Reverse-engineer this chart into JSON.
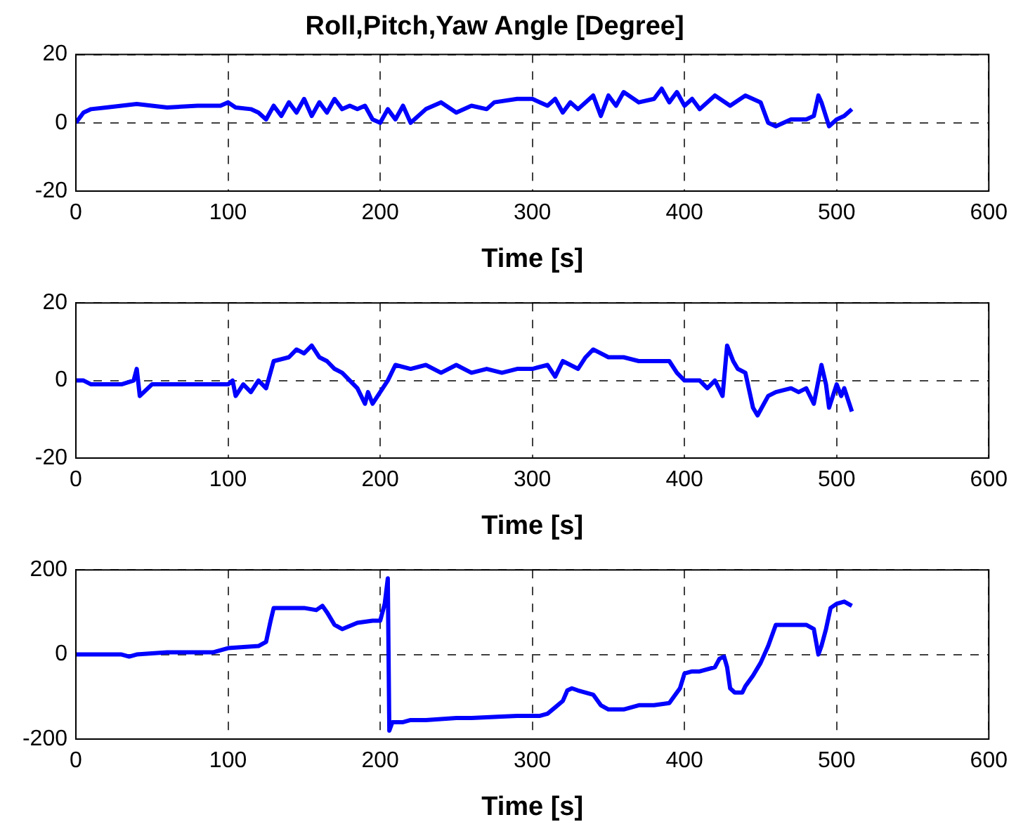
{
  "chart_data": [
    {
      "type": "line",
      "title": "Roll,Pitch,Yaw Angle [Degree]",
      "xlabel": "Time [s]",
      "xlim": [
        0,
        600
      ],
      "xticks": [
        0,
        100,
        200,
        300,
        400,
        500,
        600
      ],
      "ylim": [
        -20,
        20
      ],
      "yticks": [
        -20,
        0,
        20
      ],
      "grid": true,
      "marker": "none",
      "line_style": "solid",
      "series": [
        {
          "color": "#0000ff",
          "x": [
            0,
            5,
            10,
            20,
            30,
            40,
            50,
            60,
            80,
            95,
            100,
            105,
            115,
            120,
            125,
            130,
            135,
            140,
            145,
            150,
            155,
            160,
            165,
            170,
            175,
            180,
            185,
            190,
            195,
            200,
            205,
            210,
            215,
            220,
            230,
            240,
            250,
            260,
            270,
            275,
            290,
            300,
            305,
            310,
            315,
            320,
            325,
            330,
            340,
            345,
            350,
            355,
            360,
            370,
            380,
            385,
            390,
            395,
            400,
            405,
            410,
            420,
            430,
            440,
            450,
            455,
            460,
            470,
            480,
            485,
            488,
            490,
            495,
            500,
            505,
            510
          ],
          "values": [
            0,
            3,
            4,
            4.5,
            5,
            5.5,
            5,
            4.5,
            5,
            5,
            6,
            4.5,
            4,
            3,
            1,
            5,
            2,
            6,
            3,
            7,
            2,
            6,
            3,
            7,
            4,
            5,
            4,
            5,
            1,
            0,
            4,
            1,
            5,
            0,
            4,
            6,
            3,
            5,
            4,
            6,
            7,
            7,
            6,
            5,
            7,
            3,
            6,
            4,
            8,
            2,
            8,
            5,
            9,
            6,
            7,
            10,
            6,
            9,
            5,
            7,
            4,
            8,
            5,
            8,
            6,
            0,
            -1,
            1,
            1,
            2,
            8,
            6,
            -1,
            1,
            2,
            4
          ]
        }
      ]
    },
    {
      "type": "line",
      "xlabel": "Time [s]",
      "xlim": [
        0,
        600
      ],
      "xticks": [
        0,
        100,
        200,
        300,
        400,
        500,
        600
      ],
      "ylim": [
        -20,
        20
      ],
      "yticks": [
        -20,
        0,
        20
      ],
      "grid": true,
      "marker": "none",
      "line_style": "solid",
      "series": [
        {
          "color": "#0000ff",
          "x": [
            0,
            5,
            10,
            20,
            30,
            38,
            40,
            42,
            50,
            60,
            70,
            80,
            90,
            100,
            103,
            105,
            110,
            115,
            120,
            125,
            130,
            140,
            145,
            150,
            155,
            160,
            165,
            170,
            175,
            180,
            185,
            190,
            192,
            195,
            200,
            205,
            210,
            220,
            230,
            240,
            250,
            260,
            270,
            280,
            290,
            300,
            310,
            315,
            320,
            330,
            335,
            340,
            350,
            360,
            370,
            380,
            390,
            395,
            400,
            410,
            415,
            420,
            425,
            428,
            432,
            435,
            440,
            445,
            448,
            455,
            460,
            470,
            475,
            480,
            485,
            490,
            493,
            495,
            500,
            503,
            505,
            510
          ],
          "values": [
            0,
            0,
            -1,
            -1,
            -1,
            0,
            3,
            -4,
            -1,
            -1,
            -1,
            -1,
            -1,
            -1,
            0,
            -4,
            -1,
            -3,
            0,
            -2,
            5,
            6,
            8,
            7,
            9,
            6,
            5,
            3,
            2,
            0,
            -2,
            -6,
            -3,
            -6,
            -3,
            0,
            4,
            3,
            4,
            2,
            4,
            2,
            3,
            2,
            3,
            3,
            4,
            1,
            5,
            3,
            6,
            8,
            6,
            6,
            5,
            5,
            5,
            2,
            0,
            0,
            -2,
            0,
            -4,
            9,
            5,
            3,
            2,
            -7,
            -9,
            -4,
            -3,
            -2,
            -3,
            -2,
            -6,
            4,
            -1,
            -7,
            -1,
            -4,
            -2,
            -8
          ]
        }
      ]
    },
    {
      "type": "line",
      "xlabel": "Time [s]",
      "xlim": [
        0,
        600
      ],
      "xticks": [
        0,
        100,
        200,
        300,
        400,
        500,
        600
      ],
      "ylim": [
        -200,
        200
      ],
      "yticks": [
        -200,
        0,
        200
      ],
      "grid": true,
      "marker": "none",
      "line_style": "solid",
      "series": [
        {
          "color": "#0000ff",
          "x": [
            0,
            20,
            30,
            35,
            40,
            60,
            90,
            100,
            120,
            125,
            128,
            130,
            140,
            150,
            158,
            162,
            165,
            170,
            175,
            185,
            195,
            200,
            203,
            205,
            206,
            208,
            215,
            220,
            230,
            250,
            260,
            290,
            305,
            310,
            315,
            320,
            323,
            326,
            330,
            335,
            340,
            345,
            350,
            360,
            370,
            380,
            390,
            393,
            397,
            400,
            405,
            410,
            420,
            423,
            426,
            428,
            430,
            433,
            438,
            440,
            445,
            450,
            455,
            460,
            470,
            480,
            485,
            488,
            490,
            493,
            496,
            500,
            505,
            510
          ],
          "values": [
            0,
            0,
            0,
            -5,
            0,
            5,
            5,
            15,
            20,
            30,
            80,
            110,
            110,
            110,
            105,
            115,
            100,
            70,
            60,
            75,
            80,
            80,
            120,
            180,
            -180,
            -160,
            -160,
            -155,
            -155,
            -150,
            -150,
            -145,
            -145,
            -140,
            -125,
            -110,
            -85,
            -80,
            -85,
            -90,
            -95,
            -120,
            -130,
            -130,
            -120,
            -120,
            -115,
            -100,
            -80,
            -45,
            -40,
            -40,
            -30,
            -10,
            -5,
            -30,
            -80,
            -90,
            -90,
            -75,
            -50,
            -20,
            20,
            70,
            70,
            70,
            60,
            0,
            20,
            60,
            110,
            120,
            125,
            115
          ]
        }
      ]
    }
  ]
}
